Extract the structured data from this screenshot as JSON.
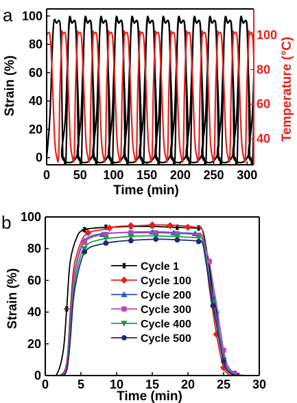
{
  "chart_data": [
    {
      "panel_label": "a",
      "type": "line",
      "xlabel": "Time (min)",
      "ylabel_left": "Strain (%)",
      "ylabel_right": "Temperature (°C)",
      "xlim": [
        0,
        310
      ],
      "ylim_left": [
        -5,
        105
      ],
      "ylim_right": [
        25,
        115
      ],
      "x_ticks": [
        0,
        50,
        100,
        150,
        200,
        250,
        300
      ],
      "y_ticks_left": [
        0,
        20,
        40,
        60,
        80,
        100
      ],
      "y_ticks_right": [
        40,
        60,
        80,
        100
      ],
      "cycle_period_min": 23.3,
      "series": [
        {
          "axis": "left",
          "color": "#000000",
          "strain_low": 0,
          "strain_high": 95,
          "values_over_time": [
            [
              0,
              0
            ],
            [
              5,
              30
            ],
            [
              10,
              92
            ],
            [
              15,
              95
            ],
            [
              20,
              95
            ],
            [
              22,
              70
            ],
            [
              24,
              5
            ],
            [
              26,
              0
            ],
            [
              29,
              0
            ],
            [
              33,
              92
            ],
            [
              38,
              95
            ],
            [
              43,
              95
            ],
            [
              45,
              70
            ],
            [
              47,
              5
            ],
            [
              49,
              0
            ]
          ]
        },
        {
          "axis": "right",
          "color": "#e8201a",
          "temperature_low": 30,
          "temperature_high": 100,
          "values_over_time": [
            [
              0,
              100
            ],
            [
              5,
              100
            ],
            [
              8,
              80
            ],
            [
              12,
              40
            ],
            [
              15,
              30
            ],
            [
              18,
              30
            ],
            [
              20,
              70
            ],
            [
              23,
              100
            ],
            [
              28,
              100
            ]
          ]
        }
      ]
    },
    {
      "panel_label": "b",
      "type": "line",
      "xlabel": "Time (min)",
      "ylabel": "Strain (%)",
      "xlim": [
        0,
        30
      ],
      "ylim": [
        0,
        100
      ],
      "x_ticks": [
        0,
        5,
        10,
        15,
        20,
        25,
        30
      ],
      "y_ticks": [
        0,
        20,
        40,
        60,
        80,
        100
      ],
      "legend_position": "center",
      "series": [
        {
          "name": "Cycle 1",
          "color": "#000000",
          "marker": "asterisk",
          "points": [
            [
              0,
              0
            ],
            [
              1.5,
              0
            ],
            [
              2.5,
              15
            ],
            [
              3.0,
              42
            ],
            [
              3.5,
              72
            ],
            [
              4.5,
              88
            ],
            [
              5.5,
              92
            ],
            [
              7,
              93
            ],
            [
              9,
              93.5
            ],
            [
              12,
              94
            ],
            [
              15,
              94
            ],
            [
              18,
              93.5
            ],
            [
              21,
              93
            ],
            [
              22,
              92
            ],
            [
              22.5,
              82
            ],
            [
              23,
              68
            ],
            [
              23.5,
              52
            ],
            [
              24,
              40
            ],
            [
              24.5,
              22
            ],
            [
              25,
              9
            ],
            [
              25.5,
              3
            ],
            [
              26.5,
              0.5
            ],
            [
              28,
              0
            ],
            [
              30,
              0
            ]
          ],
          "marker_points": [
            [
              3,
              42
            ],
            [
              5.5,
              92
            ],
            [
              8.5,
              93.5
            ],
            [
              12,
              94
            ],
            [
              15,
              94.5
            ],
            [
              18.5,
              93.5
            ],
            [
              21.5,
              93
            ],
            [
              24,
              40
            ],
            [
              27,
              0
            ]
          ]
        },
        {
          "name": "Cycle 100",
          "color": "#e8201a",
          "marker": "diamond",
          "points": [
            [
              0,
              0
            ],
            [
              2,
              0
            ],
            [
              3.0,
              8
            ],
            [
              3.5,
              40
            ],
            [
              4.0,
              68
            ],
            [
              5,
              84
            ],
            [
              6,
              90
            ],
            [
              8,
              92
            ],
            [
              10,
              94
            ],
            [
              13,
              94.5
            ],
            [
              16,
              95
            ],
            [
              19,
              94.5
            ],
            [
              21,
              93.5
            ],
            [
              22,
              92
            ],
            [
              22.5,
              75
            ],
            [
              23,
              55
            ],
            [
              23.5,
              40
            ],
            [
              24,
              26
            ],
            [
              24.5,
              14
            ],
            [
              25,
              5
            ],
            [
              25.5,
              1.5
            ],
            [
              26.5,
              0
            ],
            [
              30,
              0
            ]
          ],
          "marker_points": [
            [
              6,
              90
            ],
            [
              9,
              93
            ],
            [
              12,
              94.5
            ],
            [
              15,
              95
            ],
            [
              17.5,
              94.5
            ],
            [
              20,
              93.5
            ],
            [
              24,
              26
            ],
            [
              25,
              5
            ]
          ]
        },
        {
          "name": "Cycle 200",
          "color": "#2f54c8",
          "marker": "triangle",
          "points": [
            [
              0,
              0
            ],
            [
              2,
              0
            ],
            [
              3.0,
              6
            ],
            [
              3.5,
              35
            ],
            [
              4.0,
              62
            ],
            [
              5,
              81
            ],
            [
              6,
              87
            ],
            [
              8,
              89.5
            ],
            [
              10,
              90
            ],
            [
              13,
              90.5
            ],
            [
              16,
              90.5
            ],
            [
              19,
              90
            ],
            [
              21,
              89.5
            ],
            [
              22,
              88
            ],
            [
              22.5,
              76
            ],
            [
              23,
              62
            ],
            [
              23.5,
              50
            ],
            [
              24,
              38
            ],
            [
              24.5,
              24
            ],
            [
              25,
              12
            ],
            [
              25.5,
              5
            ],
            [
              26.5,
              1
            ],
            [
              28,
              0
            ],
            [
              30,
              0
            ]
          ],
          "marker_points": [
            [
              5.5,
              85
            ],
            [
              8,
              89
            ],
            [
              12,
              90
            ],
            [
              15,
              90.5
            ],
            [
              18,
              90
            ],
            [
              21,
              89.5
            ],
            [
              23.5,
              50
            ],
            [
              25,
              12
            ]
          ]
        },
        {
          "name": "Cycle 300",
          "color": "#b04ab8",
          "marker": "square",
          "points": [
            [
              0,
              0
            ],
            [
              2,
              0
            ],
            [
              3.0,
              5
            ],
            [
              3.5,
              30
            ],
            [
              4.0,
              60
            ],
            [
              5,
              80
            ],
            [
              6,
              86
            ],
            [
              8,
              89
            ],
            [
              10,
              90
            ],
            [
              13,
              90
            ],
            [
              16,
              90
            ],
            [
              19,
              89.5
            ],
            [
              21,
              89
            ],
            [
              22,
              88
            ],
            [
              22.5,
              80
            ],
            [
              23,
              72
            ],
            [
              23.5,
              58
            ],
            [
              24,
              45
            ],
            [
              24.5,
              30
            ],
            [
              25,
              16
            ],
            [
              25.5,
              7
            ],
            [
              26.5,
              1.5
            ],
            [
              28,
              0
            ],
            [
              30,
              0
            ]
          ],
          "marker_points": [
            [
              5.5,
              84
            ],
            [
              8.5,
              89
            ],
            [
              12,
              90
            ],
            [
              15.5,
              90
            ],
            [
              18.5,
              89.5
            ],
            [
              21.5,
              88.5
            ],
            [
              23,
              72
            ],
            [
              25,
              16
            ],
            [
              26.5,
              1.5
            ]
          ]
        },
        {
          "name": "Cycle 400",
          "color": "#1a9a4a",
          "marker": "triangle-down",
          "points": [
            [
              0,
              0
            ],
            [
              2,
              0
            ],
            [
              3.0,
              4
            ],
            [
              3.5,
              26
            ],
            [
              4.0,
              55
            ],
            [
              5,
              76
            ],
            [
              6,
              83
            ],
            [
              8,
              86
            ],
            [
              10,
              87
            ],
            [
              13,
              88
            ],
            [
              16,
              88
            ],
            [
              19,
              87.5
            ],
            [
              21,
              87
            ],
            [
              22,
              86
            ],
            [
              22.5,
              74
            ],
            [
              23,
              60
            ],
            [
              23.5,
              46
            ],
            [
              24,
              34
            ],
            [
              24.5,
              21
            ],
            [
              25,
              10
            ],
            [
              25.5,
              4
            ],
            [
              26.5,
              0.5
            ],
            [
              28,
              0
            ],
            [
              30,
              0
            ]
          ],
          "marker_points": [
            [
              5.5,
              80
            ],
            [
              8.5,
              86.5
            ],
            [
              12,
              87.5
            ],
            [
              15.5,
              88
            ],
            [
              18.5,
              87.5
            ],
            [
              21.5,
              87
            ],
            [
              23.5,
              46
            ],
            [
              25,
              10
            ]
          ]
        },
        {
          "name": "Cycle 500",
          "color": "#1f2a7a",
          "marker": "circle",
          "points": [
            [
              0,
              0
            ],
            [
              2,
              0
            ],
            [
              3.0,
              3
            ],
            [
              3.5,
              22
            ],
            [
              4.0,
              50
            ],
            [
              5,
              72
            ],
            [
              6,
              80
            ],
            [
              8,
              83
            ],
            [
              10,
              84.5
            ],
            [
              13,
              85.5
            ],
            [
              16,
              86
            ],
            [
              19,
              85.5
            ],
            [
              21,
              85
            ],
            [
              22,
              84
            ],
            [
              22.5,
              72
            ],
            [
              23,
              58
            ],
            [
              23.5,
              44
            ],
            [
              24,
              32
            ],
            [
              24.5,
              19
            ],
            [
              25,
              9
            ],
            [
              25.5,
              3
            ],
            [
              26.5,
              0.5
            ],
            [
              28,
              0
            ],
            [
              30,
              0
            ]
          ],
          "marker_points": [
            [
              5.5,
              78
            ],
            [
              8.5,
              83.5
            ],
            [
              12,
              85
            ],
            [
              15.5,
              86
            ],
            [
              18.5,
              85.5
            ],
            [
              21.5,
              84.5
            ],
            [
              23.5,
              44
            ],
            [
              25,
              9
            ]
          ]
        }
      ]
    }
  ],
  "colors": {
    "axis": "#000000",
    "temperature_axis": "#e8201a"
  }
}
